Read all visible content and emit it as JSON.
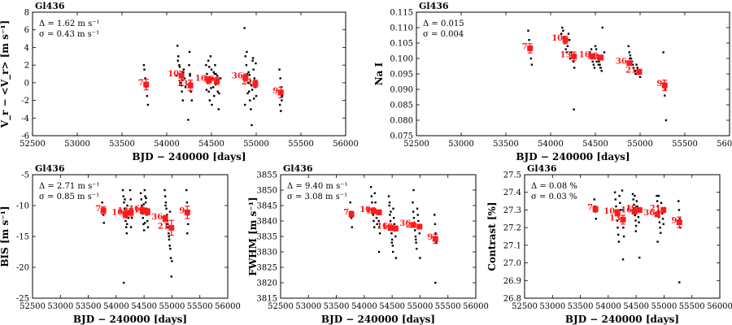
{
  "figure_title": "Gl436",
  "chart_data": [
    {
      "type": "scatter",
      "id": "rv",
      "title": "Gl436",
      "xlabel": "BJD − 240000 [days]",
      "ylabel": "V_r − <V_r> [m s⁻¹]",
      "xlim": [
        52500,
        56000
      ],
      "ylim": [
        -6,
        8
      ],
      "xticks": [
        52500,
        53000,
        53500,
        54000,
        54500,
        55000,
        55500,
        56000
      ],
      "yticks": [
        -6,
        -4,
        -2,
        0,
        2,
        4,
        6,
        8
      ],
      "annotations": [
        "Δ = 1.62 m s⁻¹",
        "σ = 0.43 m s⁻¹"
      ],
      "points_x": [
        53750,
        53760,
        53770,
        53780,
        53790,
        53745,
        53765,
        54120,
        54130,
        54140,
        54150,
        54160,
        54170,
        54180,
        54190,
        54200,
        54210,
        54110,
        54125,
        54145,
        54165,
        54175,
        54185,
        54250,
        54260,
        54270,
        54280,
        54240,
        54255,
        54265,
        54275,
        54260,
        54440,
        54450,
        54460,
        54470,
        54480,
        54490,
        54500,
        54510,
        54520,
        54530,
        54540,
        54550,
        54560,
        54570,
        54580,
        54600,
        54445,
        54465,
        54485,
        54505,
        54525,
        54545,
        54565,
        54585,
        54475,
        54495,
        54515,
        54535,
        54870,
        54880,
        54890,
        54900,
        54910,
        54920,
        54930,
        54940,
        54950,
        54960,
        54970,
        54980,
        54990,
        55000,
        54875,
        54895,
        54915,
        54935,
        54955,
        54975,
        54995,
        54885,
        54905,
        54925,
        54945,
        54965,
        55260,
        55270,
        55280,
        55290,
        55265,
        55275,
        55285
      ],
      "points_y": [
        1.5,
        0.5,
        -0.5,
        -1.5,
        -2.5,
        2.0,
        0.0,
        4.2,
        3.0,
        2.0,
        1.0,
        0.0,
        -1.0,
        -2.0,
        1.5,
        0.5,
        -0.5,
        0.8,
        2.5,
        1.8,
        -0.3,
        0.3,
        1.2,
        2.0,
        1.0,
        -1.0,
        -2.0,
        -4.2,
        3.5,
        0.0,
        -0.5,
        0.8,
        2.0,
        1.0,
        0.0,
        -1.0,
        -2.0,
        3.0,
        1.5,
        0.5,
        -0.5,
        -1.5,
        2.0,
        1.0,
        0.0,
        -1.0,
        -3.0,
        0.5,
        -0.8,
        2.5,
        0.3,
        -2.5,
        1.2,
        -0.2,
        0.8,
        -1.2,
        1.8,
        -0.6,
        0.4,
        1.0,
        6.2,
        3.0,
        2.0,
        1.0,
        0.0,
        -1.0,
        -2.0,
        -3.0,
        -4.8,
        2.5,
        1.5,
        0.5,
        -0.5,
        -1.5,
        -2.5,
        3.5,
        1.2,
        0.2,
        -0.8,
        -1.8,
        2.2,
        0.6,
        -1.2,
        0.9,
        -0.3,
        2.8,
        1.5,
        0.5,
        -0.5,
        -1.5,
        -2.5,
        -3.2,
        -2.0
      ],
      "bins": [
        {
          "x": 53770,
          "y": -0.2,
          "err": 0.6,
          "label": "7"
        },
        {
          "x": 54165,
          "y": 0.8,
          "err": 0.5,
          "label": "10"
        },
        {
          "x": 54265,
          "y": -0.3,
          "err": 0.6,
          "label": "13"
        },
        {
          "x": 54470,
          "y": 0.3,
          "err": 0.4,
          "label": "16"
        },
        {
          "x": 54560,
          "y": 0.2,
          "err": 0.4,
          "label": "19"
        },
        {
          "x": 54880,
          "y": 0.6,
          "err": 0.4,
          "label": "36"
        },
        {
          "x": 54990,
          "y": -0.1,
          "err": 0.4,
          "label": "21"
        },
        {
          "x": 55275,
          "y": -1.1,
          "err": 0.6,
          "label": "9"
        }
      ]
    },
    {
      "type": "scatter",
      "id": "nai",
      "title": "Gl436",
      "xlabel": "BJD − 240000 [days]",
      "ylabel": "Na I",
      "xlim": [
        52500,
        56000
      ],
      "ylim": [
        0.075,
        0.115
      ],
      "xticks": [
        52500,
        53000,
        53500,
        54000,
        54500,
        55000,
        55500,
        56000
      ],
      "yticks": [
        0.075,
        0.08,
        0.085,
        0.09,
        0.095,
        0.1,
        0.105,
        0.11,
        0.115
      ],
      "annotations": [
        "Δ = 0.015",
        "σ = 0.004"
      ],
      "points_x": [
        53750,
        53760,
        53770,
        53780,
        53790,
        54120,
        54130,
        54140,
        54150,
        54160,
        54170,
        54180,
        54190,
        54200,
        54210,
        54220,
        54230,
        54245,
        54255,
        54265,
        54260,
        54440,
        54450,
        54460,
        54470,
        54480,
        54490,
        54500,
        54510,
        54520,
        54530,
        54540,
        54550,
        54560,
        54570,
        54580,
        54600,
        54455,
        54475,
        54495,
        54515,
        54535,
        54555,
        54870,
        54880,
        54890,
        54900,
        54910,
        54920,
        54930,
        54940,
        54950,
        54960,
        54970,
        54980,
        54990,
        55000,
        54885,
        54905,
        54925,
        54945,
        55260,
        55270,
        55280,
        55290,
        55275
      ],
      "points_y": [
        0.109,
        0.106,
        0.103,
        0.1,
        0.098,
        0.108,
        0.11,
        0.109,
        0.107,
        0.105,
        0.103,
        0.102,
        0.104,
        0.108,
        0.106,
        0.1,
        0.102,
        0.101,
        0.099,
        0.097,
        0.0835,
        0.102,
        0.101,
        0.1,
        0.099,
        0.098,
        0.097,
        0.104,
        0.103,
        0.101,
        0.1,
        0.099,
        0.098,
        0.097,
        0.096,
        0.11,
        0.102,
        0.103,
        0.101,
        0.1,
        0.099,
        0.098,
        0.097,
        0.104,
        0.102,
        0.101,
        0.1,
        0.099,
        0.098,
        0.097,
        0.096,
        0.095,
        0.098,
        0.097,
        0.096,
        0.095,
        0.094,
        0.1,
        0.099,
        0.097,
        0.096,
        0.102,
        0.092,
        0.09,
        0.08,
        0.088
      ],
      "bins": [
        {
          "x": 53770,
          "y": 0.1033,
          "err": 0.0015,
          "label": "7"
        },
        {
          "x": 54165,
          "y": 0.106,
          "err": 0.0012,
          "label": "10"
        },
        {
          "x": 54260,
          "y": 0.1007,
          "err": 0.0014,
          "label": "13"
        },
        {
          "x": 54470,
          "y": 0.1007,
          "err": 0.0008,
          "label": "16"
        },
        {
          "x": 54560,
          "y": 0.1003,
          "err": 0.0008,
          "label": "19"
        },
        {
          "x": 54880,
          "y": 0.0985,
          "err": 0.0007,
          "label": "36"
        },
        {
          "x": 54990,
          "y": 0.0957,
          "err": 0.0008,
          "label": "21"
        },
        {
          "x": 55275,
          "y": 0.0913,
          "err": 0.0017,
          "label": "9"
        }
      ]
    },
    {
      "type": "scatter",
      "id": "bis",
      "title": "Gl436",
      "xlabel": "BJD − 240000 [days]",
      "ylabel": "BIS [m s⁻¹]",
      "xlim": [
        52500,
        56000
      ],
      "ylim": [
        -25,
        -5
      ],
      "xticks": [
        52500,
        53000,
        53500,
        54000,
        54500,
        55000,
        55500,
        56000
      ],
      "yticks": [
        -25,
        -20,
        -15,
        -10,
        -5
      ],
      "annotations": [
        "Δ = 2.71 m s⁻¹",
        "σ = 0.85 m s⁻¹"
      ],
      "points_x": [
        53750,
        53760,
        53770,
        53780,
        54120,
        54130,
        54140,
        54150,
        54160,
        54170,
        54180,
        54190,
        54200,
        54210,
        54220,
        54135,
        54155,
        54175,
        54195,
        54250,
        54260,
        54270,
        54280,
        54265,
        54440,
        54450,
        54460,
        54470,
        54480,
        54490,
        54500,
        54510,
        54520,
        54530,
        54540,
        54550,
        54560,
        54570,
        54455,
        54475,
        54495,
        54515,
        54535,
        54870,
        54880,
        54890,
        54900,
        54910,
        54920,
        54930,
        54940,
        54950,
        54960,
        54970,
        54980,
        54990,
        55000,
        54885,
        54905,
        54925,
        54945,
        54965,
        55260,
        55270,
        55280,
        55290,
        55275
      ],
      "points_y": [
        -9.5,
        -10.5,
        -11.5,
        -12.8,
        -7.5,
        -8.5,
        -9.5,
        -10.5,
        -11.5,
        -12.5,
        -13.5,
        -14.5,
        -10.0,
        -11.0,
        -12.0,
        -22.5,
        -9.0,
        -11.8,
        -13.0,
        -7.5,
        -9.0,
        -10.5,
        -12.0,
        -13.5,
        -8.0,
        -9.0,
        -10.0,
        -11.0,
        -12.0,
        -13.0,
        -14.0,
        -7.5,
        -8.5,
        -9.5,
        -10.5,
        -11.5,
        -12.5,
        -13.5,
        -10.8,
        -11.3,
        -9.8,
        -12.8,
        -8.8,
        -7.5,
        -8.5,
        -9.5,
        -10.5,
        -11.5,
        -12.5,
        -13.5,
        -14.5,
        -15.5,
        -16.5,
        -17.0,
        -18.5,
        -21.5,
        -19.0,
        -10.0,
        -12.0,
        -13.0,
        -15.0,
        -11.0,
        -7.5,
        -9.5,
        -11.5,
        -13.0,
        -14.5
      ],
      "bins": [
        {
          "x": 53770,
          "y": -10.8,
          "err": 0.6,
          "label": "7"
        },
        {
          "x": 54165,
          "y": -11.4,
          "err": 0.6,
          "label": "10"
        },
        {
          "x": 54265,
          "y": -11.1,
          "err": 0.6,
          "label": "13"
        },
        {
          "x": 54470,
          "y": -10.8,
          "err": 0.5,
          "label": "16"
        },
        {
          "x": 54560,
          "y": -11.0,
          "err": 0.5,
          "label": "19"
        },
        {
          "x": 54880,
          "y": -12.1,
          "err": 0.5,
          "label": "36"
        },
        {
          "x": 54990,
          "y": -13.6,
          "err": 1.2,
          "label": "21"
        },
        {
          "x": 55275,
          "y": -11.1,
          "err": 1.0,
          "label": "9"
        }
      ]
    },
    {
      "type": "scatter",
      "id": "fwhm",
      "title": "Gl436",
      "xlabel": "BJD − 240000 [days]",
      "ylabel": "FWHM [m s⁻¹]",
      "xlim": [
        52500,
        56000
      ],
      "ylim": [
        3815,
        3855
      ],
      "xticks": [
        52500,
        53000,
        53500,
        54000,
        54500,
        55000,
        55500,
        56000
      ],
      "yticks": [
        3815,
        3820,
        3825,
        3830,
        3835,
        3840,
        3845,
        3850,
        3855
      ],
      "annotations": [
        "Δ = 9.40 m s⁻¹",
        "σ = 3.08 m s⁻¹"
      ],
      "points_x": [
        53750,
        53760,
        53770,
        53780,
        54120,
        54130,
        54140,
        54150,
        54160,
        54170,
        54180,
        54190,
        54200,
        54210,
        54220,
        54230,
        54250,
        54260,
        54270,
        54280,
        54265,
        54440,
        54450,
        54460,
        54470,
        54480,
        54490,
        54500,
        54510,
        54520,
        54530,
        54540,
        54550,
        54560,
        54570,
        54455,
        54475,
        54495,
        54515,
        54535,
        54870,
        54880,
        54890,
        54900,
        54910,
        54920,
        54930,
        54940,
        54950,
        54960,
        54970,
        54980,
        54990,
        55000,
        54885,
        54905,
        54925,
        55260,
        55270,
        55280,
        55290,
        55275
      ],
      "points_y": [
        3846,
        3843,
        3841,
        3838,
        3851,
        3848,
        3846,
        3844,
        3842,
        3840,
        3838,
        3849,
        3846,
        3843,
        3841,
        3839,
        3843,
        3840,
        3838,
        3836,
        3830,
        3848,
        3845,
        3842,
        3840,
        3838,
        3836,
        3834,
        3832,
        3844,
        3841,
        3839,
        3837,
        3835,
        3828,
        3846,
        3843,
        3833,
        3830,
        3837,
        3846,
        3843,
        3841,
        3839,
        3837,
        3835,
        3833,
        3831,
        3844,
        3842,
        3840,
        3838,
        3836,
        3828,
        3850,
        3839,
        3834,
        3842,
        3839,
        3836,
        3833,
        3820
      ],
      "bins": [
        {
          "x": 53770,
          "y": 3842.2,
          "err": 0.9,
          "label": "7"
        },
        {
          "x": 54165,
          "y": 3843.2,
          "err": 0.8,
          "label": "10"
        },
        {
          "x": 54265,
          "y": 3842.8,
          "err": 0.8,
          "label": "13"
        },
        {
          "x": 54470,
          "y": 3837.8,
          "err": 0.8,
          "label": "16"
        },
        {
          "x": 54560,
          "y": 3837.6,
          "err": 0.8,
          "label": "19"
        },
        {
          "x": 54880,
          "y": 3838.7,
          "err": 0.6,
          "label": "36"
        },
        {
          "x": 54990,
          "y": 3838.2,
          "err": 0.6,
          "label": "21"
        },
        {
          "x": 55275,
          "y": 3834.2,
          "err": 1.5,
          "label": "9"
        }
      ]
    },
    {
      "type": "scatter",
      "id": "contrast",
      "title": "Gl436",
      "xlabel": "BJD − 240000 [days]",
      "ylabel": "Contrast [%]",
      "xlim": [
        52500,
        56000
      ],
      "ylim": [
        26.8,
        27.5
      ],
      "xticks": [
        52500,
        53000,
        53500,
        54000,
        54500,
        55000,
        55500,
        56000
      ],
      "yticks": [
        26.8,
        26.9,
        27.0,
        27.1,
        27.2,
        27.3,
        27.4,
        27.5
      ],
      "annotations": [
        "Δ = 0.08 %",
        "σ = 0.03 %"
      ],
      "points_x": [
        53750,
        53760,
        53770,
        53780,
        54120,
        54130,
        54140,
        54150,
        54160,
        54170,
        54180,
        54190,
        54200,
        54210,
        54220,
        54250,
        54260,
        54270,
        54280,
        54265,
        54440,
        54450,
        54460,
        54470,
        54480,
        54490,
        54500,
        54510,
        54520,
        54530,
        54540,
        54550,
        54560,
        54455,
        54475,
        54495,
        54870,
        54880,
        54890,
        54900,
        54910,
        54920,
        54930,
        54940,
        54950,
        54960,
        54970,
        54980,
        54990,
        55000,
        54885,
        54905,
        55260,
        55270,
        55280,
        55290,
        55275
      ],
      "points_y": [
        27.36,
        27.32,
        27.29,
        27.25,
        27.4,
        27.36,
        27.32,
        27.28,
        27.24,
        27.2,
        27.16,
        27.12,
        27.38,
        27.34,
        27.3,
        27.41,
        27.3,
        27.2,
        27.15,
        27.02,
        27.39,
        27.36,
        27.33,
        27.3,
        27.27,
        27.24,
        27.21,
        27.35,
        27.32,
        27.29,
        27.26,
        27.23,
        27.03,
        27.31,
        27.38,
        27.18,
        27.38,
        27.35,
        27.32,
        27.29,
        27.26,
        27.23,
        27.2,
        27.17,
        27.34,
        27.31,
        27.28,
        27.25,
        27.22,
        27.3,
        27.12,
        27.38,
        27.35,
        27.3,
        27.25,
        27.2,
        26.89
      ],
      "bins": [
        {
          "x": 53770,
          "y": 27.305,
          "err": 0.015,
          "label": "7"
        },
        {
          "x": 54165,
          "y": 27.284,
          "err": 0.018,
          "label": "10"
        },
        {
          "x": 54265,
          "y": 27.245,
          "err": 0.025,
          "label": "13"
        },
        {
          "x": 54470,
          "y": 27.29,
          "err": 0.013,
          "label": "16"
        },
        {
          "x": 54560,
          "y": 27.3,
          "err": 0.013,
          "label": "19"
        },
        {
          "x": 54880,
          "y": 27.275,
          "err": 0.013,
          "label": "36"
        },
        {
          "x": 54990,
          "y": 27.3,
          "err": 0.014,
          "label": "21"
        },
        {
          "x": 55275,
          "y": 27.23,
          "err": 0.03,
          "label": "9"
        }
      ]
    }
  ]
}
